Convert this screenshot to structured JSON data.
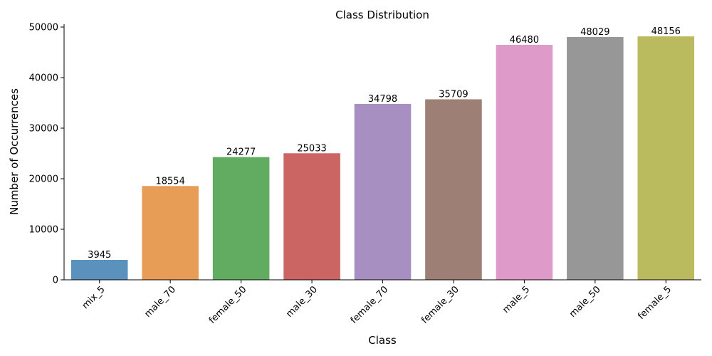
{
  "chart_data": {
    "type": "bar",
    "title": "Class Distribution",
    "xlabel": "Class",
    "ylabel": "Number of Occurrences",
    "categories": [
      "mix_5",
      "male_70",
      "female_50",
      "male_30",
      "female_70",
      "female_30",
      "male_5",
      "male_50",
      "female_5"
    ],
    "values": [
      3945,
      18554,
      24277,
      25033,
      34798,
      35709,
      46480,
      48029,
      48156
    ],
    "colors": [
      "#5b91bd",
      "#e89d57",
      "#61ac61",
      "#ca6563",
      "#a78fc1",
      "#9d7f76",
      "#de9bc9",
      "#979797",
      "#baba5f"
    ],
    "ylim": [
      0,
      50565
    ],
    "yticks": [
      0,
      10000,
      20000,
      30000,
      40000,
      50000
    ],
    "grid": false
  }
}
